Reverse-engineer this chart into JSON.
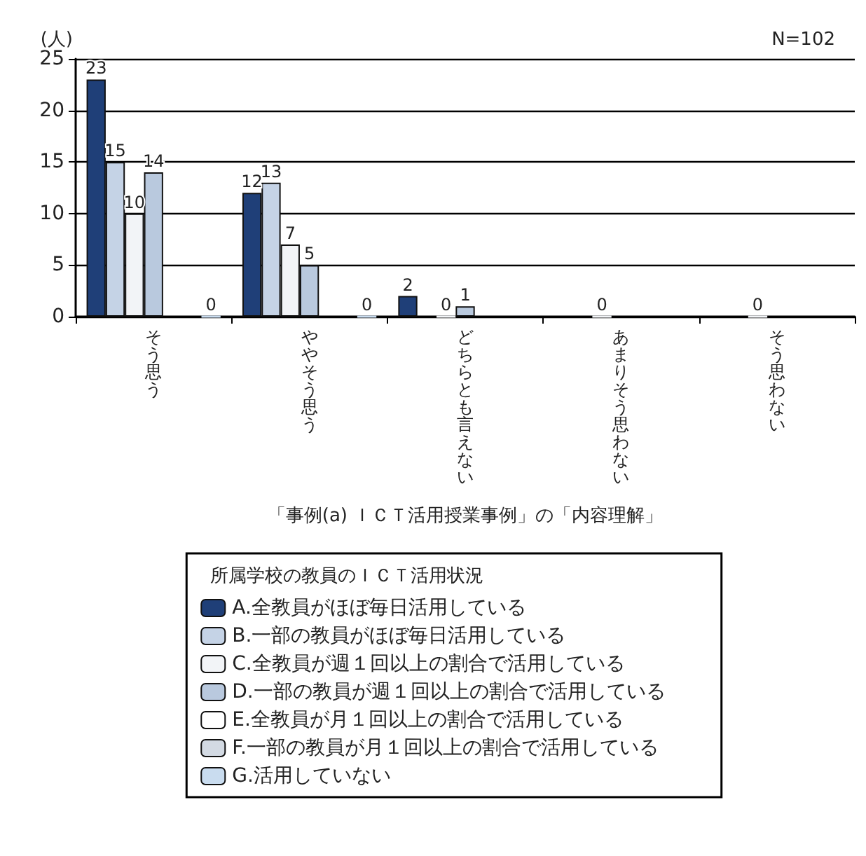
{
  "chart_data": {
    "type": "bar",
    "ylabel": "(人)",
    "xlabel": "「事例(a) ＩＣＴ活用授業事例」の「内容理解」",
    "annotations": [
      "N=102"
    ],
    "legend_title": "所属学校の教員のＩＣＴ活用状況",
    "categories": [
      "そう思う",
      "ややそう思う",
      "どちらとも言えない",
      "あまりそう思わない",
      "そう思わない"
    ],
    "series": [
      {
        "name": "A.全教員がほぼ毎日活用している",
        "color": "#1f3f78",
        "values": [
          23,
          12,
          2,
          null,
          null
        ]
      },
      {
        "name": "B.一部の教員がほぼ毎日活用している",
        "color": "#c5d3e6",
        "values": [
          15,
          13,
          null,
          null,
          null
        ]
      },
      {
        "name": "C.全教員が週１回以上の割合で活用している",
        "color": "#f2f4f7",
        "values": [
          10,
          7,
          0,
          0,
          0
        ]
      },
      {
        "name": "D.一部の教員が週１回以上の割合で活用している",
        "color": "#b9c9de",
        "values": [
          14,
          5,
          1,
          null,
          null
        ]
      },
      {
        "name": "E.全教員が月１回以上の割合で活用している",
        "color": "#ffffff",
        "values": [
          null,
          null,
          null,
          null,
          null
        ]
      },
      {
        "name": "F.一部の教員が月１回以上の割合で活用している",
        "color": "#d3dae3",
        "values": [
          null,
          null,
          null,
          null,
          null
        ]
      },
      {
        "name": "G.活用していない",
        "color": "#c9dcef",
        "values": [
          0,
          0,
          null,
          null,
          null
        ]
      }
    ],
    "ylim": [
      0,
      25
    ],
    "yticks": [
      0,
      5,
      10,
      15,
      20,
      25
    ],
    "grid": "y",
    "legend": "bottom",
    "data_labels": true
  }
}
